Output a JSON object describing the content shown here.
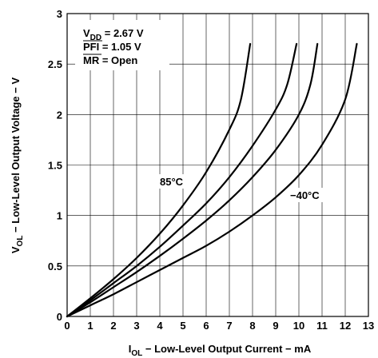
{
  "chart_data": {
    "type": "line",
    "xlabel": {
      "main": "I",
      "sub": "OL",
      "rest": " − Low-Level Output Current − mA"
    },
    "ylabel": {
      "main": "V",
      "sub": "OL",
      "rest": " − Low-Level Output Voltage − V"
    },
    "xlim": [
      0,
      13
    ],
    "ylim": [
      0,
      3
    ],
    "xticks": [
      "0",
      "1",
      "2",
      "3",
      "4",
      "5",
      "6",
      "7",
      "8",
      "9",
      "10",
      "11",
      "12",
      "13"
    ],
    "yticks": [
      "0",
      "0.5",
      "1",
      "1.5",
      "2",
      "2.5",
      "3"
    ],
    "grid": true,
    "conditions": {
      "vdd_main": "V",
      "vdd_sub": "DD",
      "vdd_rest": " = 2.67 V",
      "pfi_bar": "PFI",
      "pfi_rest": " = 1.05 V",
      "mr_bar": "MR",
      "mr_rest": " = Open"
    },
    "annotations": {
      "hot": "85°C",
      "cold": "−40°C"
    },
    "series": [
      {
        "x": [
          0,
          1,
          2,
          3,
          4,
          5,
          6,
          7,
          7.5,
          7.9
        ],
        "y": [
          0,
          0.18,
          0.37,
          0.58,
          0.82,
          1.1,
          1.43,
          1.85,
          2.15,
          2.7
        ]
      },
      {
        "x": [
          0,
          1,
          2,
          3,
          4,
          5,
          6,
          7,
          8,
          9,
          9.5,
          9.9
        ],
        "y": [
          0,
          0.16,
          0.33,
          0.5,
          0.69,
          0.9,
          1.12,
          1.38,
          1.69,
          2.05,
          2.3,
          2.7
        ]
      },
      {
        "x": [
          0,
          1,
          2,
          3,
          4,
          5,
          6,
          7,
          8,
          9,
          10,
          10.5,
          10.8
        ],
        "y": [
          0,
          0.14,
          0.29,
          0.44,
          0.6,
          0.77,
          0.95,
          1.15,
          1.38,
          1.65,
          2.0,
          2.3,
          2.7
        ]
      },
      {
        "x": [
          0,
          1,
          2,
          3,
          4,
          5,
          6,
          7,
          8,
          9,
          10,
          11,
          12,
          12.5
        ],
        "y": [
          0,
          0.11,
          0.22,
          0.34,
          0.46,
          0.58,
          0.7,
          0.84,
          1.0,
          1.18,
          1.4,
          1.7,
          2.15,
          2.7
        ]
      }
    ]
  }
}
